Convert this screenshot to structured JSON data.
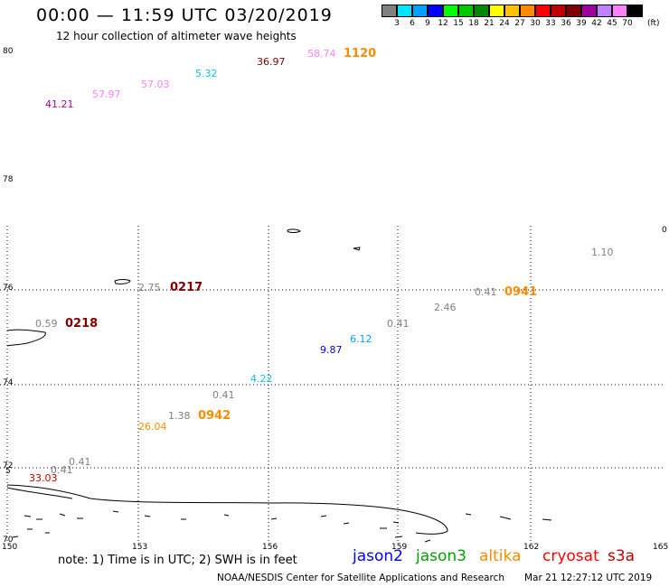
{
  "header": {
    "title": "00:00 — 11:59 UTC 03/20/2019",
    "subtitle": "12 hour collection of altimeter wave heights"
  },
  "legend": {
    "colors": [
      "#808080",
      "#00e5ff",
      "#00a0ff",
      "#0000ff",
      "#00ff00",
      "#00c800",
      "#008800",
      "#ffff00",
      "#ffc000",
      "#ff8c00",
      "#ff0000",
      "#c00000",
      "#800000",
      "#a000a0",
      "#c080ff",
      "#ff80ff",
      "#000000"
    ],
    "labels": [
      "3",
      "6",
      "9",
      "12",
      "15",
      "18",
      "21",
      "24",
      "27",
      "30",
      "33",
      "36",
      "39",
      "42",
      "45",
      "70"
    ],
    "unit": "(ft)"
  },
  "axes": {
    "lon_labels": [
      "150",
      "153",
      "156",
      "159",
      "162",
      "165"
    ],
    "lat_labels": [
      "80",
      "78",
      "76",
      "74",
      "72",
      "70"
    ],
    "edge_labels": {
      "left": "5",
      "right": "0"
    }
  },
  "map_labels": [
    {
      "text": "58.74",
      "color": "#ff80ff"
    },
    {
      "text": "1120",
      "color": "#ff8c00"
    },
    {
      "text": "36.97",
      "color": "#800000"
    },
    {
      "text": "5.32",
      "color": "#00c8e8"
    },
    {
      "text": "57.03",
      "color": "#ff80ff"
    },
    {
      "text": "57.97",
      "color": "#ff80ff"
    },
    {
      "text": "41.21",
      "color": "#a000a0"
    },
    {
      "text": "2.75",
      "color": "#808080"
    },
    {
      "text": "0217",
      "color": "#800000"
    },
    {
      "text": "0.59",
      "color": "#808080"
    },
    {
      "text": "0218",
      "color": "#800000"
    },
    {
      "text": "1.10",
      "color": "#808080"
    },
    {
      "text": "0.41",
      "color": "#808080"
    },
    {
      "text": "0941",
      "color": "#ff8c00"
    },
    {
      "text": "2.46",
      "color": "#808080"
    },
    {
      "text": "0.41",
      "color": "#808080"
    },
    {
      "text": "6.12",
      "color": "#00a0ff"
    },
    {
      "text": "9.87",
      "color": "#0000ff"
    },
    {
      "text": "4.22",
      "color": "#00c8e8"
    },
    {
      "text": "0.41",
      "color": "#808080"
    },
    {
      "text": "1.38",
      "color": "#808080"
    },
    {
      "text": "0942",
      "color": "#ff8c00"
    },
    {
      "text": "26.04",
      "color": "#ff8c00"
    },
    {
      "text": "0.41",
      "color": "#808080"
    },
    {
      "text": "0.41",
      "color": "#808080"
    },
    {
      "text": "33.03",
      "color": "#c00000"
    }
  ],
  "footer": {
    "note": "note: 1) Time is in UTC; 2) SWH is in feet",
    "missions": [
      {
        "name": "jason2",
        "color": "#0000ff"
      },
      {
        "name": "jason3",
        "color": "#00a000"
      },
      {
        "name": "altika",
        "color": "#ff8c00"
      },
      {
        "name": "cryosat",
        "color": "#ff0000"
      },
      {
        "name": "s3a",
        "color": "#c00000"
      }
    ],
    "credit": "NOAA/NESDIS Center for Satellite Applications and Research",
    "timestamp": "Mar 21 12:27:12 UTC 2019"
  }
}
